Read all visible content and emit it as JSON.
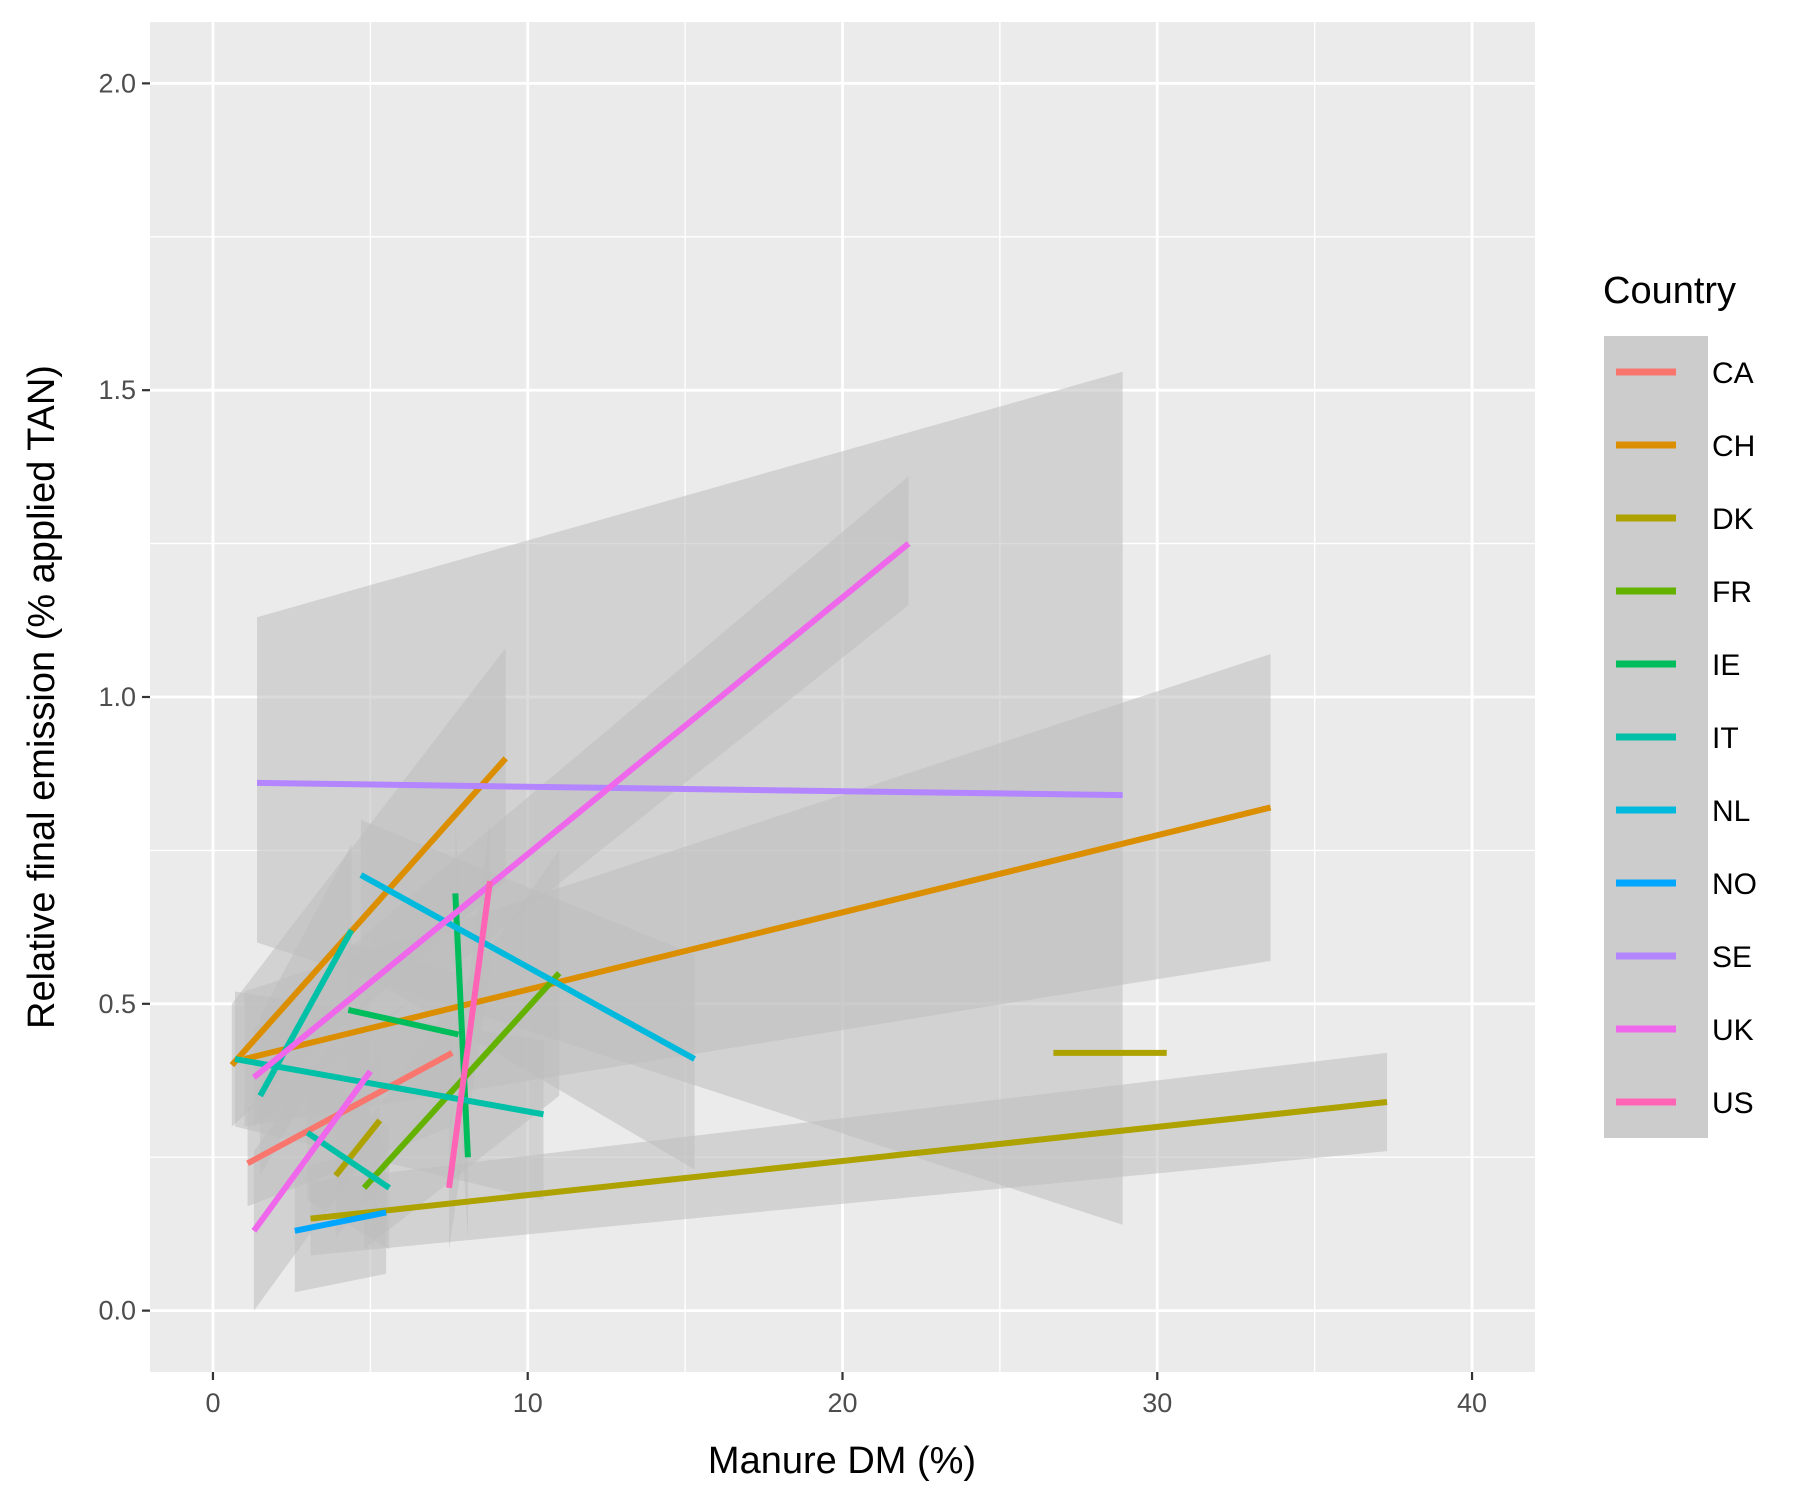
{
  "chart_data": {
    "type": "line",
    "title": "",
    "xlabel": "Manure DM (%)",
    "ylabel": "Relative final emission (% applied TAN)",
    "xlim": [
      -2,
      42
    ],
    "ylim": [
      -0.1,
      2.1
    ],
    "x_ticks": [
      "0",
      "10",
      "20",
      "30",
      "40"
    ],
    "x_tick_values": [
      0,
      10,
      20,
      30,
      40
    ],
    "y_ticks": [
      "0.0",
      "0.5",
      "1.0",
      "1.5",
      "2.0"
    ],
    "y_tick_values": [
      0,
      0.5,
      1,
      1.5,
      2
    ],
    "grid": true,
    "legend": {
      "title": "Country",
      "position": "right"
    },
    "band_color": "#bdbdbd",
    "series": [
      {
        "name": "CA",
        "color": "#F8766D",
        "segments": [
          {
            "x": [
              1.1,
              7.6
            ],
            "y": [
              0.24,
              0.42
            ],
            "band_lower": [
              0.17,
              0.3
            ],
            "band_upper": [
              0.33,
              0.55
            ]
          }
        ]
      },
      {
        "name": "CH",
        "color": "#DB8E00",
        "segments": [
          {
            "x": [
              0.6,
              9.3
            ],
            "y": [
              0.4,
              0.9
            ],
            "band_lower": [
              0.3,
              0.7
            ],
            "band_upper": [
              0.5,
              1.08
            ]
          },
          {
            "x": [
              1.0,
              33.6
            ],
            "y": [
              0.41,
              0.82
            ],
            "band_lower": [
              0.3,
              0.57
            ],
            "band_upper": [
              0.52,
              1.07
            ]
          }
        ]
      },
      {
        "name": "DK",
        "color": "#AEA200",
        "segments": [
          {
            "x": [
              3.1,
              37.3
            ],
            "y": [
              0.15,
              0.34
            ],
            "band_lower": [
              0.09,
              0.26
            ],
            "band_upper": [
              0.21,
              0.42
            ]
          },
          {
            "x": [
              26.7,
              30.3
            ],
            "y": [
              0.42,
              0.42
            ],
            "band_lower": [
              0.42,
              0.42
            ],
            "band_upper": [
              0.42,
              0.42
            ]
          },
          {
            "x": [
              3.9,
              5.3
            ],
            "y": [
              0.22,
              0.31
            ],
            "band_lower": [
              0.12,
              0.2
            ],
            "band_upper": [
              0.32,
              0.42
            ]
          }
        ]
      },
      {
        "name": "FR",
        "color": "#64B200",
        "segments": [
          {
            "x": [
              4.8,
              11.0
            ],
            "y": [
              0.2,
              0.55
            ],
            "band_lower": [
              0.1,
              0.35
            ],
            "band_upper": [
              0.3,
              0.75
            ]
          }
        ]
      },
      {
        "name": "IE",
        "color": "#00BD5C",
        "segments": [
          {
            "x": [
              4.3,
              7.8
            ],
            "y": [
              0.49,
              0.45
            ],
            "band_lower": [
              0.38,
              0.35
            ],
            "band_upper": [
              0.6,
              0.55
            ]
          },
          {
            "x": [
              7.7,
              8.1
            ],
            "y": [
              0.68,
              0.25
            ],
            "band_lower": [
              0.45,
              0.12
            ],
            "band_upper": [
              0.8,
              0.42
            ]
          }
        ]
      },
      {
        "name": "IT",
        "color": "#00C1A7",
        "segments": [
          {
            "x": [
              0.7,
              10.5
            ],
            "y": [
              0.41,
              0.32
            ],
            "band_lower": [
              0.3,
              0.18
            ],
            "band_upper": [
              0.52,
              0.44
            ]
          },
          {
            "x": [
              1.5,
              4.4
            ],
            "y": [
              0.35,
              0.62
            ],
            "band_lower": [
              0.22,
              0.48
            ],
            "band_upper": [
              0.48,
              0.76
            ]
          },
          {
            "x": [
              3.0,
              5.6
            ],
            "y": [
              0.29,
              0.2
            ],
            "band_lower": [
              0.18,
              0.1
            ],
            "band_upper": [
              0.4,
              0.3
            ]
          }
        ]
      },
      {
        "name": "NL",
        "color": "#00BADE",
        "segments": [
          {
            "x": [
              4.7,
              15.3
            ],
            "y": [
              0.71,
              0.41
            ],
            "band_lower": [
              0.55,
              0.23
            ],
            "band_upper": [
              0.8,
              0.58
            ]
          }
        ]
      },
      {
        "name": "NO",
        "color": "#00A6FF",
        "segments": [
          {
            "x": [
              2.6,
              5.5
            ],
            "y": [
              0.13,
              0.16
            ],
            "band_lower": [
              0.03,
              0.06
            ],
            "band_upper": [
              0.23,
              0.27
            ]
          }
        ]
      },
      {
        "name": "SE",
        "color": "#B385FF",
        "segments": [
          {
            "x": [
              1.4,
              28.9
            ],
            "y": [
              0.86,
              0.84
            ],
            "band_lower": [
              0.6,
              0.14
            ],
            "band_upper": [
              1.13,
              1.53
            ]
          }
        ]
      },
      {
        "name": "UK",
        "color": "#EF67EB",
        "segments": [
          {
            "x": [
              1.3,
              22.1
            ],
            "y": [
              0.38,
              1.25
            ],
            "band_lower": [
              0.3,
              1.15
            ],
            "band_upper": [
              0.46,
              1.36
            ]
          },
          {
            "x": [
              1.3,
              5.0
            ],
            "y": [
              0.13,
              0.39
            ],
            "band_lower": [
              0.0,
              0.26
            ],
            "band_upper": [
              0.26,
              0.52
            ]
          }
        ]
      },
      {
        "name": "US",
        "color": "#FF63B6",
        "segments": [
          {
            "x": [
              7.5,
              8.8
            ],
            "y": [
              0.2,
              0.7
            ],
            "band_lower": [
              0.1,
              0.55
            ],
            "band_upper": [
              0.3,
              0.8
            ]
          }
        ]
      }
    ]
  }
}
